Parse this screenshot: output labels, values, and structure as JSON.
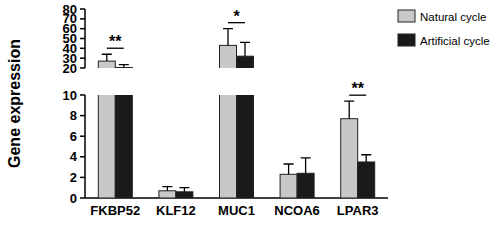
{
  "chart_data": {
    "type": "bar",
    "y_label": "Gene expression",
    "categories": [
      "FKBP52",
      "KLF12",
      "MUC1",
      "NCOA6",
      "LPAR3"
    ],
    "series": [
      {
        "name": "Natural cycle",
        "color": "#c8c8c8",
        "values": [
          27,
          0.7,
          43,
          2.3,
          7.7
        ],
        "errors": [
          7,
          0.4,
          17,
          1.0,
          1.7
        ]
      },
      {
        "name": "Artificial cycle",
        "color": "#1a1a1a",
        "values": [
          20.5,
          0.6,
          32,
          2.4,
          3.5
        ],
        "errors": [
          3,
          0.4,
          14,
          1.5,
          0.7
        ]
      }
    ],
    "ylim": [
      0,
      80
    ],
    "y_break": [
      10,
      20
    ],
    "yticks": [
      0,
      2,
      4,
      6,
      8,
      10,
      20,
      30,
      40,
      50,
      60,
      70,
      80
    ],
    "legend": "upper right",
    "grid": false,
    "annotations": [
      {
        "index": 0,
        "text": "**"
      },
      {
        "index": 2,
        "text": "*"
      },
      {
        "index": 4,
        "text": "**"
      }
    ]
  }
}
